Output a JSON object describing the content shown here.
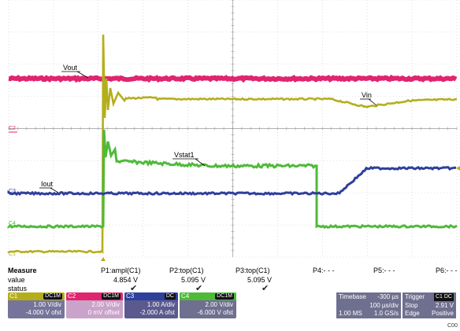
{
  "waveforms": {
    "labels": {
      "vout": "Vout",
      "vin": "Vin",
      "vstat1": "Vstat1",
      "iout": "Iout",
      "c2": "C2",
      "c3": "C3",
      "c4": "C4",
      "c1": "C1"
    },
    "colors": {
      "c1": "#b5ae1c",
      "c2": "#e0256e",
      "c3": "#2e3f9c",
      "c4": "#4fba3a"
    }
  },
  "measure": {
    "title": "Measure",
    "row_value": "value",
    "row_status": "status",
    "p1": {
      "name": "P1:ampl(C1)",
      "value": "4.854 V"
    },
    "p2": {
      "name": "P2:top(C1)",
      "value": "5.095 V"
    },
    "p3": {
      "name": "P3:top(C1)",
      "value": "5.095 V"
    },
    "p4": {
      "name": "P4:- - -"
    },
    "p5": {
      "name": "P5:- - -"
    },
    "p6": {
      "name": "P6:- - -"
    }
  },
  "channels": {
    "c1": {
      "tag": "C1",
      "mode": "DC1M",
      "line1": "1.00 V/div",
      "line2": "-4.000 V ofst"
    },
    "c2": {
      "tag": "C2",
      "mode": "DC1M",
      "line1": "2.00 V/div",
      "line2": "0 mV offset"
    },
    "c3": {
      "tag": "C3",
      "mode": "DC",
      "line1": "1.00 A/div",
      "line2": "-2.000 A ofst"
    },
    "c4": {
      "tag": "C4",
      "mode": "DC1M",
      "line1": "2.00 V/div",
      "line2": "-6.000 V ofst"
    }
  },
  "timebase": {
    "label": "Timebase",
    "delay": "-300 µs",
    "rate": "100 µs/div",
    "samples": "1.00 MS",
    "srate": "1.0 GS/s"
  },
  "trigger": {
    "label": "Trigger",
    "badge": "C1 DC",
    "mode": "Stop",
    "level": "2.91 V",
    "type": "Edge",
    "slope": "Positive"
  },
  "corner_code": "C00"
}
